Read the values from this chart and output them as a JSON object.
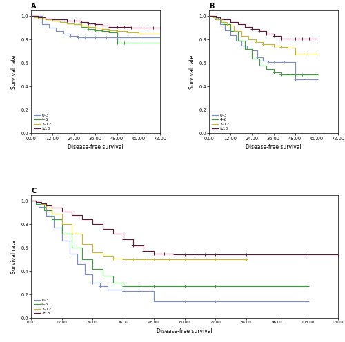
{
  "colors": {
    "0-3": "#7b8ec8",
    "4-6": "#3a9e3a",
    "7-12": "#c8b830",
    ">=13": "#5c1a3a"
  },
  "legend_labels": [
    "0–3",
    "4–6",
    "7–12",
    "≥13"
  ],
  "panel_A": {
    "title": "A",
    "xlabel": "Disease-free survival",
    "ylabel": "Survival rate",
    "xlim": [
      0,
      72
    ],
    "ylim": [
      0.0,
      1.05
    ],
    "xticks": [
      0,
      12,
      24,
      36,
      48,
      60,
      72
    ],
    "yticks": [
      0.0,
      0.2,
      0.4,
      0.6,
      0.8,
      1.0
    ],
    "curves": {
      "0-3": {
        "x": [
          0,
          6,
          10,
          14,
          18,
          22,
          26,
          30,
          36,
          48,
          60,
          72
        ],
        "y": [
          1.0,
          0.93,
          0.9,
          0.87,
          0.85,
          0.83,
          0.82,
          0.82,
          0.82,
          0.82,
          0.82,
          0.82
        ],
        "censors_x": [
          22,
          26,
          30,
          36,
          42,
          48,
          54,
          60
        ],
        "censors_y": [
          0.83,
          0.82,
          0.82,
          0.82,
          0.82,
          0.82,
          0.82,
          0.82
        ]
      },
      "4-6": {
        "x": [
          0,
          4,
          8,
          12,
          16,
          20,
          24,
          28,
          32,
          36,
          40,
          44,
          48,
          52,
          60,
          72
        ],
        "y": [
          1.0,
          0.98,
          0.97,
          0.96,
          0.95,
          0.94,
          0.93,
          0.91,
          0.89,
          0.88,
          0.87,
          0.86,
          0.77,
          0.77,
          0.77,
          0.77
        ],
        "censors_x": [
          32,
          36,
          40,
          44,
          48,
          52
        ],
        "censors_y": [
          0.89,
          0.88,
          0.87,
          0.86,
          0.77,
          0.77
        ]
      },
      "7-12": {
        "x": [
          0,
          2,
          4,
          8,
          12,
          16,
          20,
          24,
          28,
          32,
          36,
          40,
          44,
          48,
          54,
          60,
          72
        ],
        "y": [
          1.0,
          0.99,
          0.98,
          0.97,
          0.96,
          0.95,
          0.94,
          0.93,
          0.92,
          0.91,
          0.9,
          0.89,
          0.88,
          0.87,
          0.86,
          0.85,
          0.85
        ],
        "censors_x": [
          28,
          32,
          36,
          40,
          44,
          48,
          54,
          60
        ],
        "censors_y": [
          0.92,
          0.91,
          0.9,
          0.89,
          0.88,
          0.87,
          0.86,
          0.85
        ]
      },
      ">=13": {
        "x": [
          0,
          2,
          4,
          6,
          8,
          12,
          16,
          20,
          24,
          28,
          32,
          36,
          40,
          44,
          48,
          52,
          56,
          60,
          64,
          68,
          72
        ],
        "y": [
          1.0,
          1.0,
          0.99,
          0.99,
          0.98,
          0.97,
          0.97,
          0.96,
          0.96,
          0.95,
          0.94,
          0.93,
          0.92,
          0.91,
          0.91,
          0.91,
          0.9,
          0.9,
          0.9,
          0.9,
          0.9
        ],
        "censors_x": [
          20,
          24,
          28,
          32,
          36,
          40,
          44,
          48,
          52,
          56,
          60,
          64,
          68,
          72
        ],
        "censors_y": [
          0.96,
          0.96,
          0.95,
          0.94,
          0.93,
          0.92,
          0.91,
          0.91,
          0.91,
          0.9,
          0.9,
          0.9,
          0.9,
          0.9
        ]
      }
    }
  },
  "panel_B": {
    "title": "B",
    "xlabel": "Disease-free survival",
    "ylabel": "Survival rate",
    "xlim": [
      0,
      72
    ],
    "ylim": [
      0.0,
      1.05
    ],
    "xticks": [
      0,
      12,
      24,
      36,
      48,
      60,
      72
    ],
    "yticks": [
      0.0,
      0.2,
      0.4,
      0.6,
      0.8,
      1.0
    ],
    "curves": {
      "0-3": {
        "x": [
          0,
          3,
          6,
          9,
          12,
          15,
          18,
          21,
          24,
          27,
          30,
          33,
          36,
          42,
          48,
          54,
          60
        ],
        "y": [
          1.0,
          0.97,
          0.93,
          0.88,
          0.84,
          0.79,
          0.75,
          0.72,
          0.71,
          0.65,
          0.62,
          0.61,
          0.61,
          0.61,
          0.46,
          0.46,
          0.46
        ],
        "censors_x": [
          27,
          33,
          36,
          42,
          48,
          54,
          60
        ],
        "censors_y": [
          0.65,
          0.61,
          0.61,
          0.61,
          0.46,
          0.46,
          0.46
        ]
      },
      "4-6": {
        "x": [
          0,
          2,
          5,
          8,
          12,
          16,
          20,
          24,
          28,
          32,
          36,
          40,
          44,
          48,
          52,
          60
        ],
        "y": [
          1.0,
          0.99,
          0.97,
          0.93,
          0.87,
          0.79,
          0.72,
          0.64,
          0.58,
          0.55,
          0.52,
          0.5,
          0.5,
          0.5,
          0.5,
          0.5
        ],
        "censors_x": [
          36,
          40,
          44,
          48,
          52,
          60
        ],
        "censors_y": [
          0.52,
          0.5,
          0.5,
          0.5,
          0.5,
          0.5
        ]
      },
      "7-12": {
        "x": [
          0,
          2,
          4,
          7,
          10,
          14,
          18,
          22,
          26,
          30,
          36,
          40,
          44,
          48,
          54,
          60
        ],
        "y": [
          1.0,
          0.99,
          0.97,
          0.95,
          0.92,
          0.87,
          0.83,
          0.8,
          0.78,
          0.76,
          0.75,
          0.74,
          0.73,
          0.68,
          0.68,
          0.68
        ],
        "censors_x": [
          26,
          30,
          36,
          40,
          44,
          48,
          54,
          60
        ],
        "censors_y": [
          0.78,
          0.76,
          0.75,
          0.74,
          0.73,
          0.68,
          0.68,
          0.68
        ]
      },
      ">=13": {
        "x": [
          0,
          2,
          4,
          6,
          8,
          12,
          16,
          20,
          24,
          28,
          32,
          36,
          40,
          44,
          48,
          52,
          56,
          60
        ],
        "y": [
          1.0,
          1.0,
          0.99,
          0.98,
          0.97,
          0.95,
          0.93,
          0.91,
          0.89,
          0.87,
          0.85,
          0.83,
          0.81,
          0.81,
          0.81,
          0.81,
          0.81,
          0.81
        ],
        "censors_x": [
          24,
          28,
          32,
          36,
          40,
          44,
          48,
          52,
          56,
          60
        ],
        "censors_y": [
          0.89,
          0.87,
          0.85,
          0.83,
          0.81,
          0.81,
          0.81,
          0.81,
          0.81,
          0.81
        ]
      }
    }
  },
  "panel_C": {
    "title": "C",
    "xlabel": "Disease-free survival",
    "ylabel": "Survival rate",
    "xlim": [
      0,
      120
    ],
    "ylim": [
      0.0,
      1.05
    ],
    "xticks": [
      0,
      12,
      24,
      36,
      48,
      60,
      72,
      84,
      96,
      108,
      120
    ],
    "yticks": [
      0.0,
      0.2,
      0.4,
      0.6,
      0.8,
      1.0
    ],
    "curves": {
      "0-3": {
        "x": [
          0,
          3,
          6,
          9,
          12,
          15,
          18,
          21,
          24,
          27,
          30,
          36,
          42,
          48,
          60,
          72,
          108
        ],
        "y": [
          1.0,
          0.95,
          0.87,
          0.77,
          0.66,
          0.55,
          0.46,
          0.37,
          0.3,
          0.27,
          0.24,
          0.23,
          0.23,
          0.14,
          0.14,
          0.14,
          0.14
        ],
        "censors_x": [
          24,
          27,
          30,
          36,
          42,
          60,
          72,
          108
        ],
        "censors_y": [
          0.3,
          0.27,
          0.24,
          0.23,
          0.23,
          0.14,
          0.14,
          0.14
        ]
      },
      "4-6": {
        "x": [
          0,
          2,
          5,
          8,
          12,
          16,
          20,
          24,
          28,
          32,
          36,
          42,
          48,
          60,
          72,
          108
        ],
        "y": [
          1.0,
          0.97,
          0.92,
          0.84,
          0.72,
          0.6,
          0.5,
          0.42,
          0.36,
          0.3,
          0.27,
          0.27,
          0.27,
          0.27,
          0.27,
          0.27
        ],
        "censors_x": [
          36,
          42,
          48,
          60,
          72,
          108
        ],
        "censors_y": [
          0.27,
          0.27,
          0.27,
          0.27,
          0.27,
          0.27
        ]
      },
      "7-12": {
        "x": [
          0,
          2,
          4,
          6,
          8,
          12,
          16,
          20,
          24,
          28,
          32,
          36,
          40,
          44,
          48,
          54,
          60,
          72,
          84
        ],
        "y": [
          1.0,
          0.99,
          0.97,
          0.94,
          0.89,
          0.8,
          0.72,
          0.63,
          0.56,
          0.53,
          0.51,
          0.5,
          0.5,
          0.5,
          0.5,
          0.5,
          0.5,
          0.5,
          0.5
        ],
        "censors_x": [
          32,
          36,
          40,
          44,
          48,
          54,
          60,
          72,
          84
        ],
        "censors_y": [
          0.51,
          0.5,
          0.5,
          0.5,
          0.5,
          0.5,
          0.5,
          0.5,
          0.5
        ]
      },
      ">=13": {
        "x": [
          0,
          2,
          4,
          6,
          8,
          12,
          16,
          20,
          24,
          28,
          32,
          36,
          40,
          44,
          48,
          52,
          56,
          60,
          64,
          68,
          72,
          84,
          108,
          120
        ],
        "y": [
          1.0,
          0.99,
          0.98,
          0.96,
          0.94,
          0.91,
          0.88,
          0.84,
          0.8,
          0.76,
          0.72,
          0.67,
          0.62,
          0.57,
          0.55,
          0.55,
          0.54,
          0.54,
          0.54,
          0.54,
          0.54,
          0.54,
          0.54,
          0.54
        ],
        "censors_x": [
          36,
          40,
          44,
          48,
          52,
          56,
          60,
          64,
          68,
          72,
          84,
          108,
          120
        ],
        "censors_y": [
          0.67,
          0.62,
          0.57,
          0.55,
          0.55,
          0.54,
          0.54,
          0.54,
          0.54,
          0.54,
          0.54,
          0.54,
          0.54
        ]
      }
    }
  }
}
